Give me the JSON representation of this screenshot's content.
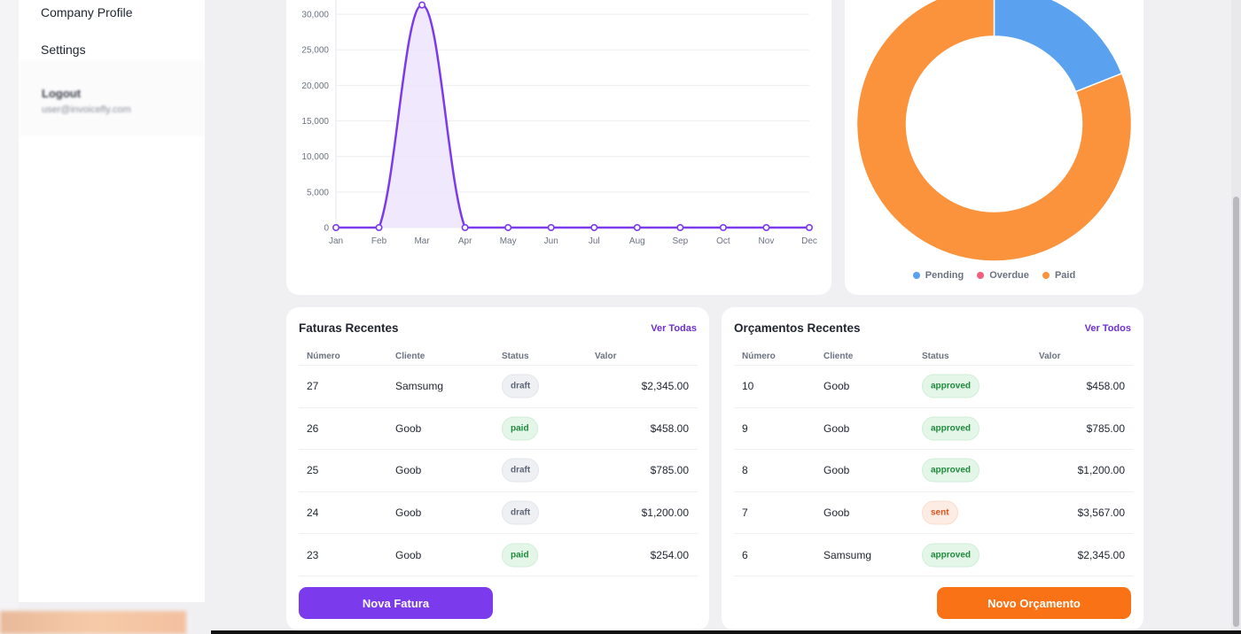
{
  "sidebar": {
    "items": [
      {
        "label": "Company Profile"
      },
      {
        "label": "Settings"
      }
    ],
    "user": {
      "name": "Logout",
      "email": "user@invoicefly.com"
    }
  },
  "line_chart": {
    "y_ticks": [
      "0",
      "5,000",
      "10,000",
      "15,000",
      "20,000",
      "25,000",
      "30,000"
    ],
    "x_ticks": [
      "Jan",
      "Feb",
      "Mar",
      "Apr",
      "May",
      "Jun",
      "Jul",
      "Aug",
      "Sep",
      "Oct",
      "Nov",
      "Dec"
    ]
  },
  "donut": {
    "legend": [
      {
        "label": "Pending",
        "color": "#5aa1f0"
      },
      {
        "label": "Overdue",
        "color": "#f0607a"
      },
      {
        "label": "Paid",
        "color": "#fb923c"
      }
    ]
  },
  "chart_data": [
    {
      "type": "area",
      "x": [
        "Jan",
        "Feb",
        "Mar",
        "Apr",
        "May",
        "Jun",
        "Jul",
        "Aug",
        "Sep",
        "Oct",
        "Nov",
        "Dec"
      ],
      "series": [
        {
          "values": [
            0,
            0,
            31300,
            0,
            0,
            0,
            0,
            0,
            0,
            0,
            0,
            0
          ],
          "color": "#7c3aed"
        }
      ],
      "ylim": [
        0,
        32000
      ],
      "grid": true
    },
    {
      "type": "pie",
      "categories": [
        "Pending",
        "Overdue",
        "Paid"
      ],
      "values": [
        19,
        0,
        81
      ],
      "colors": [
        "#5aa1f0",
        "#f0607a",
        "#fb923c"
      ],
      "legend": "bottom"
    }
  ],
  "invoices": {
    "title": "Faturas Recentes",
    "link": "Ver Todas",
    "headers": [
      "Número",
      "Cliente",
      "Status",
      "Valor"
    ],
    "rows": [
      {
        "num": "27",
        "client": "Samsumg",
        "status": "draft",
        "value": "$2,345.00"
      },
      {
        "num": "26",
        "client": "Goob",
        "status": "paid",
        "value": "$458.00"
      },
      {
        "num": "25",
        "client": "Goob",
        "status": "draft",
        "value": "$785.00"
      },
      {
        "num": "24",
        "client": "Goob",
        "status": "draft",
        "value": "$1,200.00"
      },
      {
        "num": "23",
        "client": "Goob",
        "status": "paid",
        "value": "$254.00"
      }
    ],
    "button": "Nova Fatura"
  },
  "quotes": {
    "title": "Orçamentos Recentes",
    "link": "Ver Todos",
    "headers": [
      "Número",
      "Cliente",
      "Status",
      "Valor"
    ],
    "rows": [
      {
        "num": "10",
        "client": "Goob",
        "status": "approved",
        "value": "$458.00"
      },
      {
        "num": "9",
        "client": "Goob",
        "status": "approved",
        "value": "$785.00"
      },
      {
        "num": "8",
        "client": "Goob",
        "status": "approved",
        "value": "$1,200.00"
      },
      {
        "num": "7",
        "client": "Goob",
        "status": "sent",
        "value": "$3,567.00"
      },
      {
        "num": "6",
        "client": "Samsumg",
        "status": "approved",
        "value": "$2,345.00"
      }
    ],
    "button": "Novo Orçamento"
  }
}
